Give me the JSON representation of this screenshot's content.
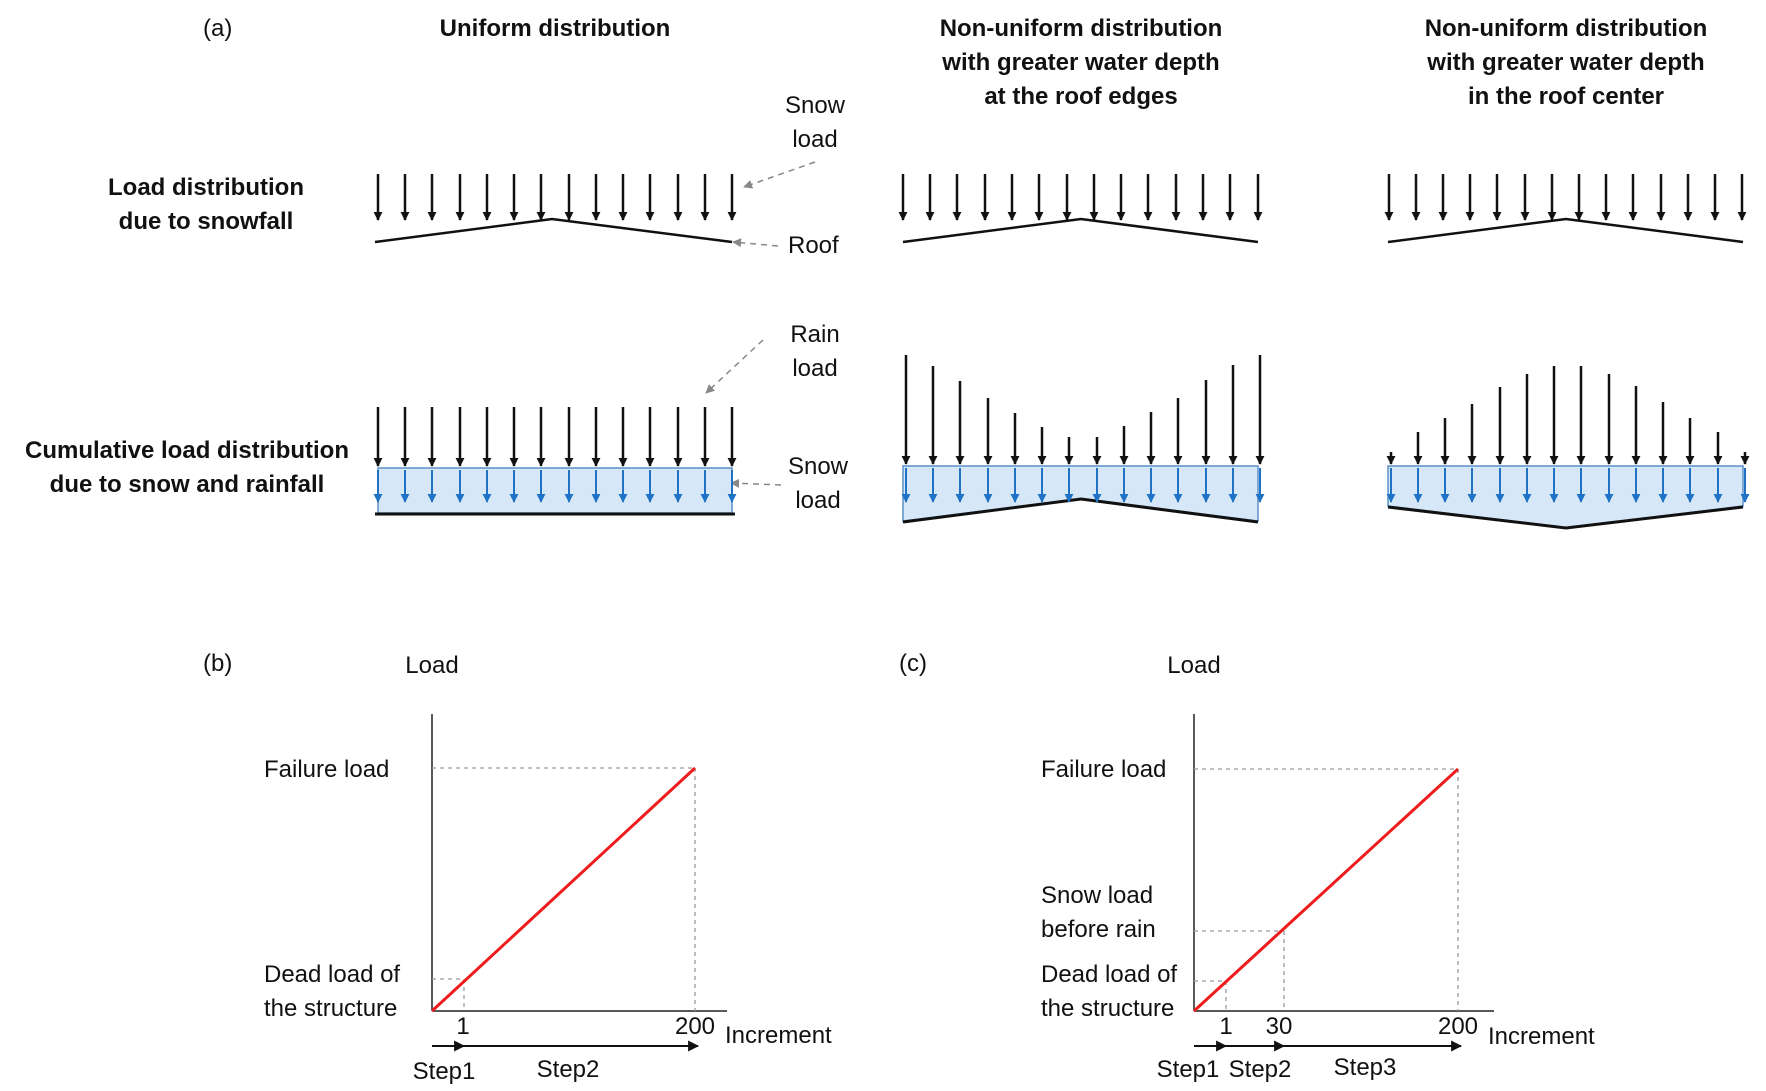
{
  "panel_a": {
    "label": "(a)",
    "columns": [
      {
        "title_lines": [
          "Uniform distribution"
        ]
      },
      {
        "title_lines": [
          "Non-uniform distribution",
          "with greater water depth",
          "at the roof edges"
        ]
      },
      {
        "title_lines": [
          "Non-uniform distribution",
          "with greater water depth",
          "in the roof center"
        ]
      }
    ],
    "row_labels": {
      "snowfall": [
        "Load distribution",
        "due to snowfall"
      ],
      "cumulative": [
        "Cumulative load distribution",
        "due to snow and rainfall"
      ]
    },
    "annotations": {
      "snow_load_top": [
        "Snow",
        "load"
      ],
      "roof": "Roof",
      "rain_load": [
        "Rain",
        "load"
      ],
      "snow_load_bottom": [
        "Snow",
        "load"
      ]
    }
  },
  "panel_b": {
    "label": "(b)",
    "y_axis_label": "Load",
    "x_axis_label": "Increment",
    "failure_label": "Failure load",
    "dead_label": [
      "Dead load of",
      "the structure"
    ],
    "tick_labels": [
      "1",
      "200"
    ],
    "steps": [
      "Step1",
      "Step2"
    ]
  },
  "panel_c": {
    "label": "(c)",
    "y_axis_label": "Load",
    "x_axis_label": "Increment",
    "failure_label": "Failure load",
    "snow_label": [
      "Snow load",
      "before rain"
    ],
    "dead_label": [
      "Dead load of",
      "the structure"
    ],
    "tick_labels": [
      "1",
      "30",
      "200"
    ],
    "steps": [
      "Step1",
      "Step2",
      "Step3"
    ]
  },
  "colors": {
    "line": "#ee1c1c",
    "water_fill": "#d6e8f7",
    "water_arrow": "#1f72c4",
    "guide": "#999999",
    "arrow": "#111111"
  }
}
